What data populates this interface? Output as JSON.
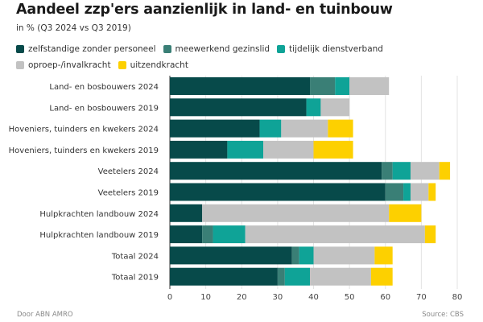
{
  "chart_data": {
    "type": "bar",
    "orientation": "horizontal",
    "stacked": true,
    "title": "Aandeel zzp'ers aanzienlijk in land- en tuinbouw",
    "subtitle": "in % (Q3 2024 vs Q3 2019)",
    "xlabel": "",
    "ylabel": "",
    "xlim": [
      0,
      80
    ],
    "xticks": [
      0,
      10,
      20,
      30,
      40,
      50,
      60,
      70,
      80
    ],
    "grid": true,
    "legend_position": "top",
    "categories": [
      "Land- en bosbouwers 2024",
      "Land- en bosbouwers 2019",
      "Hoveniers, tuinders en kwekers 2024",
      "Hoveniers, tuinders en kwekers 2019",
      "Veetelers 2024",
      "Veetelers 2019",
      "Hulpkrachten landbouw 2024",
      "Hulpkrachten landbouw 2019",
      "Totaal 2024",
      "Totaal 2019"
    ],
    "series": [
      {
        "name": "zelfstandige zonder personeel",
        "color": "#074a4a",
        "values": [
          39,
          38,
          25,
          16,
          59,
          60,
          9,
          9,
          34,
          30
        ]
      },
      {
        "name": "meewerkend gezinslid",
        "color": "#3a7f76",
        "values": [
          7,
          0,
          0,
          0,
          3,
          5,
          0,
          3,
          2,
          2
        ]
      },
      {
        "name": "tijdelijk dienstverband",
        "color": "#0fa397",
        "values": [
          4,
          4,
          6,
          10,
          5,
          2,
          0,
          9,
          4,
          7
        ]
      },
      {
        "name": "oproep-/invalkracht",
        "color": "#c2c2c2",
        "values": [
          11,
          8,
          13,
          14,
          8,
          5,
          52,
          50,
          17,
          17
        ]
      },
      {
        "name": "uitzendkracht",
        "color": "#fdd000",
        "values": [
          0,
          0,
          7,
          11,
          3,
          2,
          9,
          3,
          5,
          6
        ]
      }
    ]
  },
  "footer": {
    "credit": "Door ABN AMRO",
    "source": "Source:  CBS"
  }
}
